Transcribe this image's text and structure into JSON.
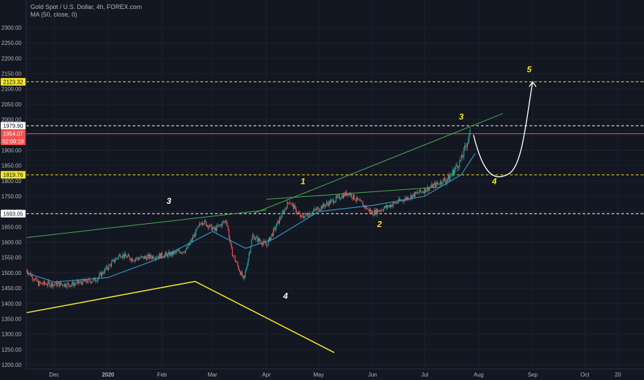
{
  "header": {
    "symbol_line": "Gold Spot / U.S. Dollar, 4h, FOREX.com",
    "indicator_line": "MA (50, close, 0)"
  },
  "chart_data": {
    "type": "candlestick",
    "ylim": [
      1200,
      2350
    ],
    "y_ticks": [
      1200,
      1250,
      1300,
      1350,
      1400,
      1450,
      1500,
      1550,
      1600,
      1650,
      1700,
      1750,
      1800,
      1850,
      1900,
      1950,
      2000,
      2050,
      2100,
      2150,
      2200,
      2250,
      2300
    ],
    "x_ticks": [
      "Dec",
      "2020",
      "Feb",
      "Mar",
      "Apr",
      "May",
      "Jun",
      "Jul",
      "Aug",
      "Sep",
      "Oct",
      "20"
    ],
    "price_path": [
      {
        "date": "2019-11-15",
        "price": 1510
      },
      {
        "date": "2019-11-22",
        "price": 1465
      },
      {
        "date": "2019-12-10",
        "price": 1462
      },
      {
        "date": "2019-12-25",
        "price": 1478
      },
      {
        "date": "2020-01-08",
        "price": 1560
      },
      {
        "date": "2020-01-15",
        "price": 1545
      },
      {
        "date": "2020-02-05",
        "price": 1560
      },
      {
        "date": "2020-02-15",
        "price": 1575
      },
      {
        "date": "2020-02-24",
        "price": 1670
      },
      {
        "date": "2020-03-02",
        "price": 1640
      },
      {
        "date": "2020-03-09",
        "price": 1672
      },
      {
        "date": "2020-03-12",
        "price": 1570
      },
      {
        "date": "2020-03-19",
        "price": 1475
      },
      {
        "date": "2020-03-24",
        "price": 1620
      },
      {
        "date": "2020-04-01",
        "price": 1590
      },
      {
        "date": "2020-04-14",
        "price": 1735
      },
      {
        "date": "2020-04-21",
        "price": 1680
      },
      {
        "date": "2020-05-18",
        "price": 1762
      },
      {
        "date": "2020-06-01",
        "price": 1695
      },
      {
        "date": "2020-06-15",
        "price": 1730
      },
      {
        "date": "2020-07-01",
        "price": 1770
      },
      {
        "date": "2020-07-15",
        "price": 1810
      },
      {
        "date": "2020-07-22",
        "price": 1870
      },
      {
        "date": "2020-07-27",
        "price": 1955
      }
    ],
    "ma_path": [
      {
        "date": "2019-11-15",
        "price": 1500
      },
      {
        "date": "2019-12-01",
        "price": 1470
      },
      {
        "date": "2020-01-01",
        "price": 1485
      },
      {
        "date": "2020-02-01",
        "price": 1550
      },
      {
        "date": "2020-03-01",
        "price": 1635
      },
      {
        "date": "2020-03-20",
        "price": 1580
      },
      {
        "date": "2020-04-05",
        "price": 1610
      },
      {
        "date": "2020-05-01",
        "price": 1700
      },
      {
        "date": "2020-06-01",
        "price": 1720
      },
      {
        "date": "2020-07-01",
        "price": 1750
      },
      {
        "date": "2020-07-22",
        "price": 1820
      },
      {
        "date": "2020-07-30",
        "price": 1890
      }
    ],
    "h_levels": [
      {
        "price": 2123.32,
        "label": "2123.32",
        "color": "#f5e52b",
        "style": "dashed"
      },
      {
        "price": 1979.9,
        "label": "1979.90",
        "color": "#ffffff",
        "style": "dashed"
      },
      {
        "price": 1954.07,
        "label": "1954.07",
        "color": "#ef5350",
        "style": "solid"
      },
      {
        "price": 1819.76,
        "label": "1819.76",
        "color": "#f5e52b",
        "style": "dashed"
      },
      {
        "price": 1693.05,
        "label": "1693.05",
        "color": "#ffffff",
        "style": "dashed"
      }
    ],
    "countdown": {
      "text": "02:09:18",
      "color": "#ef5350"
    },
    "trendlines": [
      {
        "color": "#4caf50",
        "points": [
          {
            "date": "2019-11-15",
            "price": 1615
          },
          {
            "date": "2020-04-01",
            "price": 1705
          }
        ]
      },
      {
        "color": "#4caf50",
        "points": [
          {
            "date": "2020-03-25",
            "price": 1695
          },
          {
            "date": "2020-08-15",
            "price": 2020
          }
        ]
      },
      {
        "color": "#4caf50",
        "points": [
          {
            "date": "2020-04-01",
            "price": 1740
          },
          {
            "date": "2020-07-10",
            "price": 1780
          }
        ]
      },
      {
        "color": "#f5e52b",
        "points": [
          {
            "date": "2019-11-15",
            "price": 1370
          },
          {
            "date": "2020-02-20",
            "price": 1472
          },
          {
            "date": "2020-05-10",
            "price": 1240
          }
        ]
      }
    ],
    "projection": {
      "color": "#ffffff",
      "points": [
        {
          "date": "2020-07-29",
          "price": 1950
        },
        {
          "date": "2020-08-18",
          "price": 1822
        },
        {
          "date": "2020-09-01",
          "price": 2123
        }
      ]
    },
    "wave_labels": [
      {
        "text": "3",
        "date": "2020-02-05",
        "price": 1725,
        "color": "#ffffff"
      },
      {
        "text": "4",
        "date": "2020-04-12",
        "price": 1415,
        "color": "#ffffff"
      },
      {
        "text": "1",
        "date": "2020-04-22",
        "price": 1790,
        "color": "#f5e52b"
      },
      {
        "text": "2",
        "date": "2020-06-05",
        "price": 1650,
        "color": "#f5e52b"
      },
      {
        "text": "3",
        "date": "2020-07-22",
        "price": 2000,
        "color": "#f5e52b"
      },
      {
        "text": "4",
        "date": "2020-08-10",
        "price": 1790,
        "color": "#f5e52b"
      },
      {
        "text": "5",
        "date": "2020-08-30",
        "price": 2155,
        "color": "#f5e52b"
      }
    ]
  }
}
